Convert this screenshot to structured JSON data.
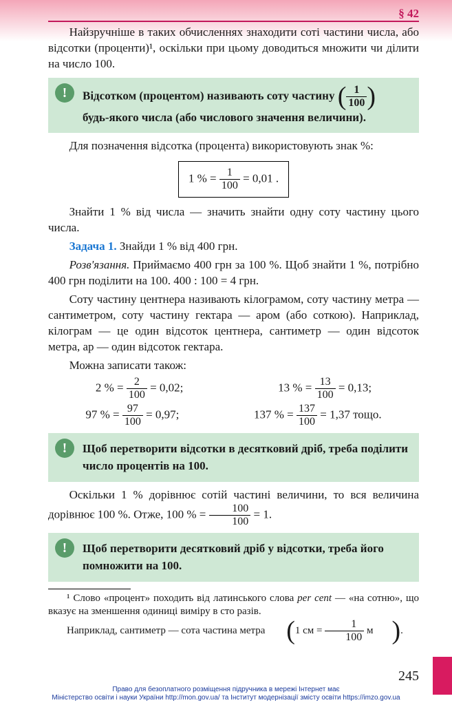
{
  "colors": {
    "accent": "#c2185b",
    "callout_bg": "#cfe8d5",
    "callout_icon_bg": "#5a9c6a",
    "task_label": "#1976d2",
    "credits": "#1a3a9c",
    "gradient_top": "#f4a6b8",
    "side_tab": "#d81b60"
  },
  "header": {
    "section_ref": "§ 42"
  },
  "p1": "Найзручніше в таких обчисленнях знаходити соті частини числа, або відсотки (проценти)¹, оскільки при цьому доводиться множити чи ділити на число 100.",
  "callout1": {
    "line1_a": "Відсотком (процентом) називають соту частину",
    "line2": "будь-якого числа (або числового значення величини).",
    "frac_num": "1",
    "frac_den": "100"
  },
  "p2": "Для позначення відсотка (процента) використовують знак %:",
  "formula": {
    "lhs": "1 % =",
    "frac_num": "1",
    "frac_den": "100",
    "rhs": "= 0,01 ."
  },
  "p3": "Знайти 1 % від числа — значить знайти одну соту частину цього числа.",
  "task1": {
    "label": "Задача 1.",
    "text": " Знайди 1 % від 400 грн."
  },
  "sol1": {
    "label": "Розв'язання.",
    "text": " Приймаємо 400 грн за 100 %. Щоб знайти 1 %, потрібно 400 грн поділити на 100. 400 : 100 = 4 грн."
  },
  "p4": "Соту частину центнера називають кілограмом, соту частину метра — сантиметром, соту частину гектара — аром (або соткою). Наприклад, кілограм — це один відсоток центнера, сантиметр — один відсоток метра, ар — один відсоток гектара.",
  "p5": "Можна записати також:",
  "eqs": {
    "r1c1": {
      "lhs": "2 % =",
      "num": "2",
      "den": "100",
      "rhs": "= 0,02;"
    },
    "r1c2": {
      "lhs": "13 % =",
      "num": "13",
      "den": "100",
      "rhs": "= 0,13;"
    },
    "r2c1": {
      "lhs": "97 % =",
      "num": "97",
      "den": "100",
      "rhs": "= 0,97;"
    },
    "r2c2": {
      "lhs": "137 % =",
      "num": "137",
      "den": "100",
      "rhs": "= 1,37 тощо."
    }
  },
  "callout2": "Щоб перетворити відсотки в десятковий дріб, треба поділити число процентів на 100.",
  "p6": {
    "a": "Оскільки 1 % дорівнює сотій частині величини, то вся величина дорівнює 100 %. Отже, 100 % = ",
    "num": "100",
    "den": "100",
    "b": " = 1."
  },
  "callout3": "Щоб перетворити десятковий дріб у відсотки, треба його помножити на 100.",
  "footnote": {
    "l1a": "¹ Слово «процент» походить від латинського слова ",
    "l1b": "per cent",
    "l1c": " — «на сотню», що вказує на зменшення одиниці виміру в сто разів.",
    "l2a": "Наприклад, сантиметр — сота частина метра ",
    "inner": "1 см = ",
    "num": "1",
    "den": "100",
    "unit": " м",
    "period": "."
  },
  "pagenum": "245",
  "credits": {
    "l1": "Право для безоплатного розміщення підручника в мережі Інтернет має",
    "l2": "Міністерство освіти і науки України http://mon.gov.ua/ та Інститут модернізації змісту освіти https://imzo.gov.ua"
  }
}
